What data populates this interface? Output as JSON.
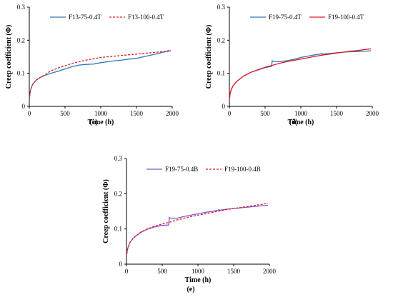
{
  "chart_data": [
    {
      "type": "line",
      "caption": "(c)",
      "xlabel": "Time (h)",
      "ylabel": "Creep coefficient (Φ)",
      "xlim": [
        0,
        2000
      ],
      "ylim": [
        0,
        0.3
      ],
      "xticks": [
        "0",
        "500",
        "1000",
        "1500",
        "2000"
      ],
      "yticks": [
        "0",
        "0.1",
        "0.2",
        "0.3"
      ],
      "grid": false,
      "legend_position": "top-left",
      "series": [
        {
          "name": "F13-75-0.4T",
          "color": "#2e75b6",
          "dash": "none",
          "x": [
            0,
            10,
            25,
            50,
            100,
            150,
            200,
            300,
            400,
            500,
            600,
            700,
            800,
            900,
            1000,
            1100,
            1200,
            1300,
            1400,
            1500,
            1600,
            1700,
            1800,
            1900,
            1980
          ],
          "y": [
            0.02,
            0.04,
            0.055,
            0.068,
            0.08,
            0.087,
            0.092,
            0.1,
            0.106,
            0.113,
            0.12,
            0.125,
            0.127,
            0.128,
            0.132,
            0.135,
            0.138,
            0.14,
            0.143,
            0.145,
            0.15,
            0.155,
            0.16,
            0.165,
            0.168
          ]
        },
        {
          "name": "F13-100-0.4T",
          "color": "#e31a1c",
          "dash": "3,2",
          "x": [
            0,
            10,
            25,
            50,
            100,
            150,
            200,
            300,
            400,
            500,
            600,
            700,
            800,
            900,
            1000,
            1100,
            1200,
            1300,
            1400,
            1500,
            1600,
            1700,
            1800,
            1900,
            1980
          ],
          "y": [
            0.02,
            0.04,
            0.055,
            0.068,
            0.08,
            0.087,
            0.093,
            0.107,
            0.116,
            0.123,
            0.13,
            0.135,
            0.14,
            0.144,
            0.148,
            0.15,
            0.152,
            0.154,
            0.156,
            0.158,
            0.16,
            0.162,
            0.164,
            0.166,
            0.17
          ]
        }
      ]
    },
    {
      "type": "line",
      "caption": "(d)",
      "xlabel": "Time (h)",
      "ylabel": "Creep coefficient (Φ)",
      "xlim": [
        0,
        2000
      ],
      "ylim": [
        0,
        0.3
      ],
      "xticks": [
        "0",
        "500",
        "1000",
        "1500",
        "2000"
      ],
      "yticks": [
        "0",
        "0.1",
        "0.2",
        "0.3"
      ],
      "grid": false,
      "legend_position": "top-left",
      "series": [
        {
          "name": "F19-75-0.4T",
          "color": "#2e75b6",
          "dash": "none",
          "x": [
            0,
            10,
            25,
            50,
            100,
            200,
            300,
            400,
            500,
            590,
            600,
            610,
            700,
            800,
            900,
            1000,
            1100,
            1200,
            1280,
            1290,
            1300,
            1400,
            1500,
            1600,
            1700,
            1800,
            1900,
            1980
          ],
          "y": [
            0.02,
            0.038,
            0.05,
            0.062,
            0.075,
            0.092,
            0.103,
            0.11,
            0.117,
            0.121,
            0.138,
            0.136,
            0.135,
            0.138,
            0.142,
            0.148,
            0.152,
            0.156,
            0.158,
            0.16,
            0.158,
            0.16,
            0.162,
            0.164,
            0.165,
            0.166,
            0.167,
            0.168
          ]
        },
        {
          "name": "F19-100-0.4T",
          "color": "#e31a1c",
          "dash": "none",
          "x": [
            0,
            10,
            25,
            50,
            100,
            200,
            300,
            400,
            500,
            600,
            700,
            800,
            900,
            1000,
            1100,
            1200,
            1300,
            1400,
            1500,
            1600,
            1700,
            1800,
            1900,
            1980
          ],
          "y": [
            0.02,
            0.038,
            0.05,
            0.062,
            0.075,
            0.092,
            0.103,
            0.111,
            0.118,
            0.124,
            0.13,
            0.135,
            0.139,
            0.143,
            0.147,
            0.151,
            0.155,
            0.158,
            0.161,
            0.164,
            0.167,
            0.169,
            0.172,
            0.174
          ]
        }
      ]
    },
    {
      "type": "line",
      "caption": "(e)",
      "xlabel": "Time (h)",
      "ylabel": "Creep coefficient (Φ)",
      "xlim": [
        0,
        2000
      ],
      "ylim": [
        0,
        0.3
      ],
      "xticks": [
        "0",
        "500",
        "1000",
        "1500",
        "2000"
      ],
      "yticks": [
        "0",
        "0.1",
        "0.2",
        "0.3"
      ],
      "grid": false,
      "legend_position": "top-left",
      "series": [
        {
          "name": "F19-75-0.4B",
          "color": "#7b57d1",
          "dash": "none",
          "x": [
            0,
            10,
            25,
            50,
            100,
            200,
            300,
            400,
            500,
            590,
            600,
            610,
            700,
            800,
            900,
            1000,
            1100,
            1200,
            1280,
            1290,
            1300,
            1400,
            1500,
            1600,
            1700,
            1800,
            1900,
            1980
          ],
          "y": [
            0.02,
            0.038,
            0.05,
            0.062,
            0.075,
            0.09,
            0.1,
            0.106,
            0.11,
            0.111,
            0.133,
            0.131,
            0.13,
            0.135,
            0.139,
            0.143,
            0.147,
            0.15,
            0.153,
            0.155,
            0.153,
            0.156,
            0.158,
            0.16,
            0.162,
            0.164,
            0.166,
            0.167
          ]
        },
        {
          "name": "F19-100-0.4B",
          "color": "#e31a1c",
          "dash": "3,2",
          "x": [
            0,
            10,
            25,
            50,
            100,
            200,
            300,
            400,
            500,
            600,
            700,
            800,
            900,
            1000,
            1100,
            1200,
            1300,
            1400,
            1500,
            1600,
            1700,
            1800,
            1900,
            1980
          ],
          "y": [
            0.02,
            0.038,
            0.05,
            0.062,
            0.075,
            0.091,
            0.101,
            0.108,
            0.114,
            0.119,
            0.125,
            0.13,
            0.135,
            0.139,
            0.143,
            0.147,
            0.151,
            0.155,
            0.158,
            0.161,
            0.164,
            0.167,
            0.17,
            0.173
          ]
        }
      ]
    }
  ]
}
